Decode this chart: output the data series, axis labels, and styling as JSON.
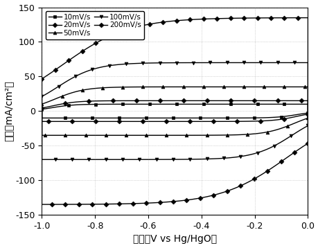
{
  "xlabel": "电压（V vs Hg/HgO）",
  "ylabel": "电流（mA/cm²）",
  "xlim": [
    -1.0,
    0.0
  ],
  "ylim": [
    -150,
    150
  ],
  "xticks": [
    -1.0,
    -0.8,
    -0.6,
    -0.4,
    -0.2,
    0.0
  ],
  "yticks": [
    -150,
    -100,
    -50,
    0,
    50,
    100,
    150
  ],
  "labels": [
    "10mV/s",
    "20mV/s",
    "50mV/s",
    "100mV/s",
    "200mV/s"
  ],
  "markers": [
    "s",
    "D",
    "^",
    "v",
    "D"
  ],
  "current_maxes": [
    10,
    15,
    35,
    70,
    135
  ],
  "n_pts": 80,
  "markevery": [
    8,
    7,
    6,
    5,
    4
  ],
  "markersize": 3.5
}
